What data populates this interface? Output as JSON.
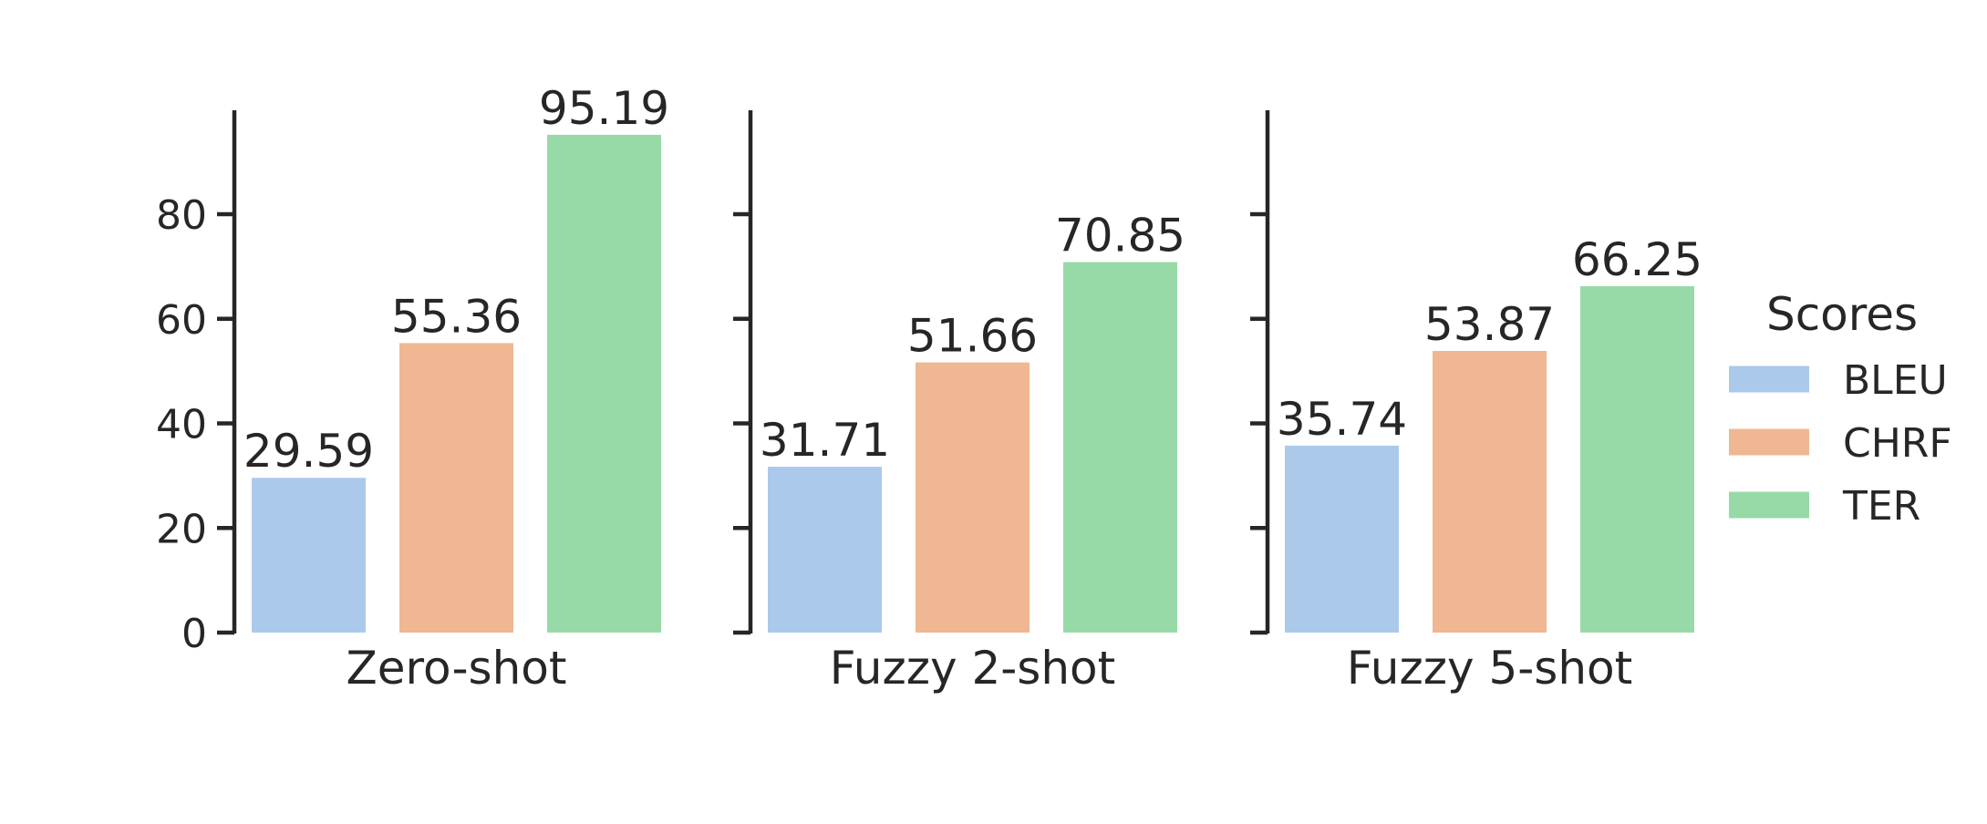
{
  "chart_data": {
    "type": "bar",
    "categories": [
      "Zero-shot",
      "Fuzzy 2-shot",
      "Fuzzy 5-shot"
    ],
    "series": [
      {
        "name": "BLEU",
        "values": [
          29.59,
          31.71,
          35.74
        ],
        "color": "#abc9ea"
      },
      {
        "name": "CHRF",
        "values": [
          55.36,
          51.66,
          53.87
        ],
        "color": "#efb792"
      },
      {
        "name": "TER",
        "values": [
          95.19,
          70.85,
          66.25
        ],
        "color": "#98daa7"
      }
    ],
    "data_labels": [
      [
        "29.59",
        "55.36",
        "95.19"
      ],
      [
        "31.71",
        "51.66",
        "70.85"
      ],
      [
        "35.74",
        "53.87",
        "66.25"
      ]
    ],
    "title": "",
    "xlabel": "",
    "ylabel": "",
    "ylim": [
      0,
      100
    ],
    "yticks": [
      0,
      20,
      40,
      60,
      80
    ],
    "ytick_labels": [
      "0",
      "20",
      "40",
      "60",
      "80"
    ],
    "legend": {
      "title": "Scores",
      "placement": "right"
    },
    "grid": false,
    "axis_color": "#262626"
  }
}
